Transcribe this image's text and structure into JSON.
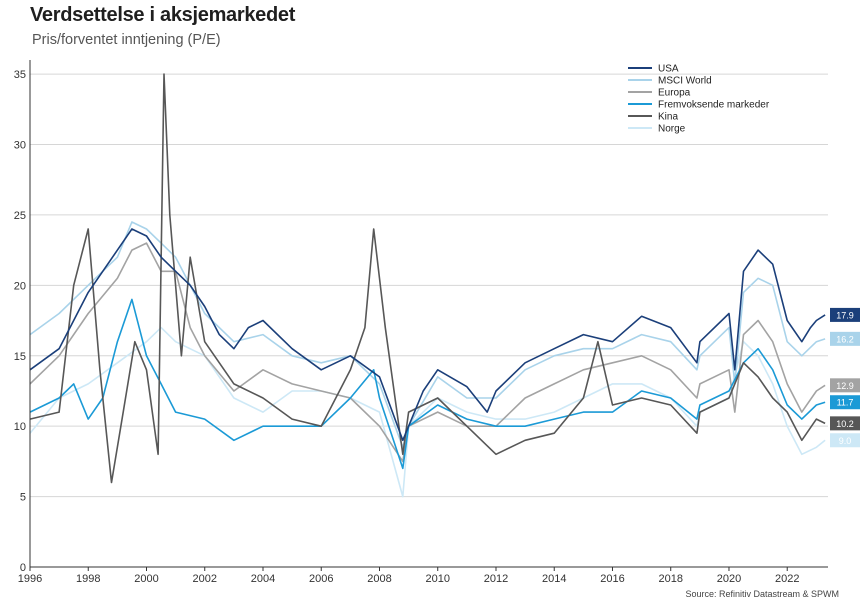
{
  "header": {
    "title": "Verdsettelse i aksjemarkedet",
    "subtitle": "Pris/forventet inntjening (P/E)"
  },
  "footer": {
    "source": "Source: Refinitiv Datastream & SPWM"
  },
  "chart_data": {
    "type": "line",
    "title": "Verdsettelse i aksjemarkedet",
    "subtitle": "Pris/forventet inntjening (P/E)",
    "xlabel": "",
    "ylabel": "",
    "xlim": [
      1996,
      2023.4
    ],
    "ylim": [
      0,
      36
    ],
    "yticks": [
      0,
      5,
      10,
      15,
      20,
      25,
      30,
      35
    ],
    "xticks": [
      1996,
      1998,
      2000,
      2002,
      2004,
      2006,
      2008,
      2010,
      2012,
      2014,
      2016,
      2018,
      2020,
      2022
    ],
    "grid": "horizontal",
    "legend_position": "top-right",
    "series": [
      {
        "name": "USA",
        "color": "#1b3f7a",
        "last_label": "17.9",
        "x": [
          1996,
          1997,
          1998,
          1999,
          1999.5,
          2000,
          2000.5,
          2001,
          2001.5,
          2002,
          2002.5,
          2003,
          2003.5,
          2004,
          2005,
          2006,
          2007,
          2008,
          2008.8,
          2009,
          2009.5,
          2010,
          2011,
          2011.7,
          2012,
          2013,
          2014,
          2015,
          2016,
          2017,
          2018,
          2018.9,
          2019,
          2020,
          2020.2,
          2020.5,
          2021,
          2021.5,
          2022,
          2022.5,
          2022.8,
          2023,
          2023.3
        ],
        "y": [
          14,
          15.5,
          19.5,
          22.5,
          24,
          23.5,
          22,
          21,
          20,
          18.5,
          16.5,
          15.5,
          17,
          17.5,
          15.5,
          14,
          15,
          13.5,
          9,
          10,
          12.5,
          14,
          12.8,
          11,
          12.5,
          14.5,
          15.5,
          16.5,
          16,
          17.8,
          17,
          14.5,
          16,
          18,
          14,
          21,
          22.5,
          21.5,
          17.5,
          16,
          17,
          17.5,
          17.9
        ]
      },
      {
        "name": "MSCI World",
        "color": "#a9d3ea",
        "last_label": "16.2",
        "x": [
          1996,
          1997,
          1998,
          1999,
          1999.5,
          2000,
          2000.5,
          2001,
          2001.5,
          2002,
          2003,
          2004,
          2005,
          2006,
          2007,
          2008,
          2008.8,
          2009,
          2010,
          2011,
          2012,
          2013,
          2014,
          2015,
          2016,
          2017,
          2018,
          2018.9,
          2019,
          2020,
          2020.2,
          2020.5,
          2021,
          2021.5,
          2022,
          2022.5,
          2023,
          2023.3
        ],
        "y": [
          16.5,
          18,
          20,
          22,
          24.5,
          24,
          23,
          22,
          20,
          18,
          16,
          16.5,
          15,
          14.5,
          15,
          13,
          8.5,
          10,
          13.5,
          12,
          12,
          14,
          15,
          15.5,
          15.5,
          16.5,
          16,
          14,
          15,
          17,
          13,
          19.5,
          20.5,
          20,
          16,
          15,
          16,
          16.2
        ]
      },
      {
        "name": "Europa",
        "color": "#a3a3a3",
        "last_label": "12.9",
        "x": [
          1996,
          1997,
          1998,
          1999,
          1999.5,
          2000,
          2000.5,
          2001,
          2001.5,
          2002,
          2003,
          2004,
          2005,
          2006,
          2007,
          2008,
          2008.8,
          2009,
          2010,
          2011,
          2012,
          2013,
          2014,
          2015,
          2016,
          2017,
          2018,
          2018.9,
          2019,
          2020,
          2020.2,
          2020.5,
          2021,
          2021.5,
          2022,
          2022.5,
          2023,
          2023.3
        ],
        "y": [
          13,
          15,
          18,
          20.5,
          22.5,
          23,
          21,
          21,
          17,
          15,
          12.5,
          14,
          13,
          12.5,
          12,
          10,
          7.5,
          10,
          11,
          10,
          10,
          12,
          13,
          14,
          14.5,
          15,
          14,
          12,
          13,
          14,
          11,
          16.5,
          17.5,
          16,
          13,
          11,
          12.5,
          12.9
        ]
      },
      {
        "name": "Fremvoksende markeder",
        "color": "#1b9ad6",
        "last_label": "11.7",
        "x": [
          1996,
          1997,
          1997.5,
          1998,
          1998.5,
          1999,
          1999.5,
          2000,
          2000.5,
          2001,
          2002,
          2003,
          2004,
          2005,
          2006,
          2007,
          2007.8,
          2008,
          2008.8,
          2009,
          2010,
          2011,
          2012,
          2013,
          2014,
          2015,
          2016,
          2017,
          2018,
          2018.9,
          2019,
          2020,
          2020.5,
          2021,
          2021.5,
          2022,
          2022.5,
          2023,
          2023.3
        ],
        "y": [
          11,
          12,
          13,
          10.5,
          12,
          16,
          19,
          15,
          13,
          11,
          10.5,
          9,
          10,
          10,
          10,
          12,
          14,
          12,
          7,
          10,
          11.5,
          10.5,
          10,
          10,
          10.5,
          11,
          11,
          12.5,
          12,
          10.5,
          11.5,
          12.5,
          14.5,
          15.5,
          14,
          11.5,
          10.5,
          11.5,
          11.7
        ]
      },
      {
        "name": "Kina",
        "color": "#575757",
        "last_label": "10.2",
        "x": [
          1996,
          1997,
          1997.5,
          1998,
          1998.4,
          1998.8,
          1999.2,
          1999.6,
          2000,
          2000.4,
          2000.6,
          2000.8,
          2001.2,
          2001.5,
          2002,
          2003,
          2004,
          2005,
          2006,
          2007,
          2007.5,
          2007.8,
          2008.2,
          2008.8,
          2009,
          2010,
          2011,
          2012,
          2013,
          2014,
          2015,
          2015.5,
          2016,
          2017,
          2018,
          2018.9,
          2019,
          2020,
          2020.5,
          2021,
          2021.5,
          2022,
          2022.5,
          2023,
          2023.3
        ],
        "y": [
          10.5,
          11,
          20,
          24,
          14,
          6,
          11,
          16,
          14,
          8,
          35,
          25,
          15,
          22,
          16,
          13,
          12,
          10.5,
          10,
          14,
          17,
          24,
          17,
          8,
          11,
          12,
          10,
          8,
          9,
          9.5,
          12,
          16,
          11.5,
          12,
          11.5,
          9.5,
          11,
          12,
          14.5,
          13.5,
          12,
          11,
          9,
          10.5,
          10.2
        ]
      },
      {
        "name": "Norge",
        "color": "#cde8f6",
        "last_label": "9.0",
        "x": [
          1996,
          1997,
          1998,
          1999,
          2000,
          2000.5,
          2001,
          2002,
          2003,
          2004,
          2005,
          2006,
          2007,
          2008,
          2008.8,
          2009,
          2010,
          2011,
          2012,
          2013,
          2014,
          2015,
          2016,
          2017,
          2018,
          2018.9,
          2019,
          2020,
          2020.5,
          2021,
          2021.5,
          2022,
          2022.5,
          2023,
          2023.3
        ],
        "y": [
          9.5,
          12,
          13,
          14.5,
          16,
          17,
          16,
          15,
          12,
          11,
          12.5,
          12.5,
          12,
          11,
          5,
          10,
          12,
          11,
          10.5,
          10.5,
          11,
          12,
          13,
          13,
          12,
          10,
          11,
          12,
          16,
          15,
          13,
          10,
          8,
          8.5,
          9.0
        ]
      }
    ]
  }
}
